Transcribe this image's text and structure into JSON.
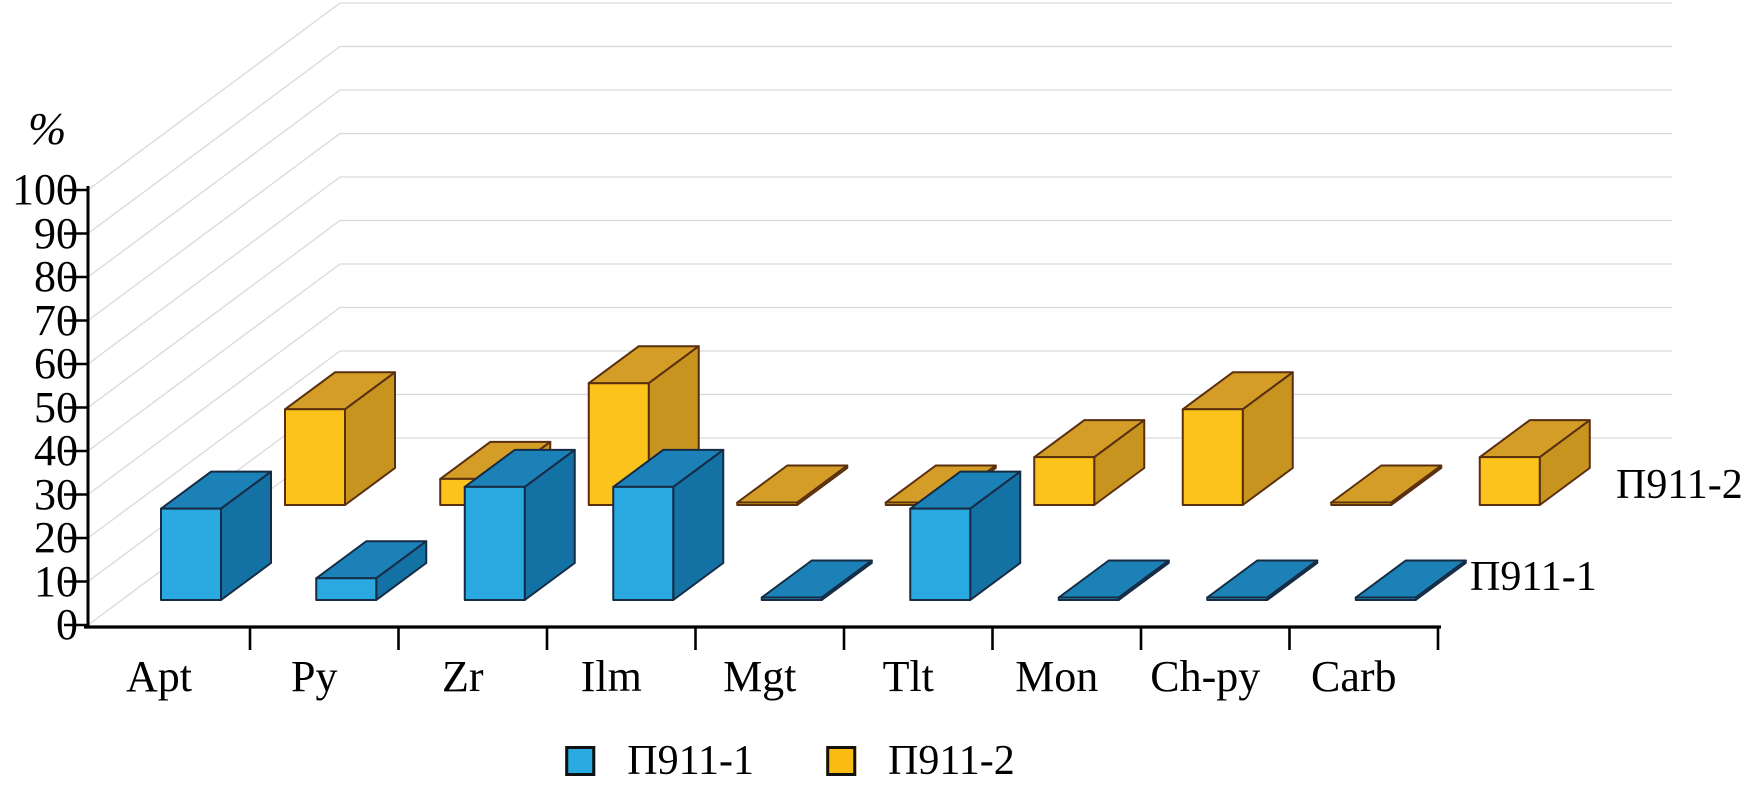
{
  "chart_data": {
    "type": "bar",
    "projection": "3d",
    "title": "",
    "ylabel": "%",
    "xlabel": "",
    "ylim": [
      0,
      100
    ],
    "ytick_step": 10,
    "yticks": [
      0,
      10,
      20,
      30,
      40,
      50,
      60,
      70,
      80,
      90,
      100
    ],
    "grid": true,
    "legend_position": "bottom",
    "categories": [
      "Apt",
      "Py",
      "Zr",
      "Ilm",
      "Mgt",
      "Tlt",
      "Mon",
      "Ch-py",
      "Carb"
    ],
    "series": [
      {
        "name": "П911-1",
        "row": "front",
        "values": [
          21,
          5,
          26,
          26,
          0.5,
          21,
          0.5,
          0.5,
          0.5
        ],
        "color_front": "#29A9E0",
        "color_top": "#1C81B6",
        "color_side": "#1371A3",
        "color_stroke": "#152C44",
        "legend_color": "#29ABE2"
      },
      {
        "name": "П911-2",
        "row": "back",
        "values": [
          22,
          6,
          28,
          0.5,
          0.5,
          11,
          22,
          0.5,
          11
        ],
        "color_front": "#FCC31C",
        "color_top": "#D39D27",
        "color_side": "#C6941F",
        "color_stroke": "#5A2F0D",
        "legend_color": "#FBBC12"
      }
    ]
  },
  "row_labels": {
    "back": "П911-2",
    "front": "П911-1"
  },
  "colors": {
    "background": "#ffffff",
    "axis": "#000000",
    "gridline": "#d9d9d9",
    "text": "#000000"
  }
}
